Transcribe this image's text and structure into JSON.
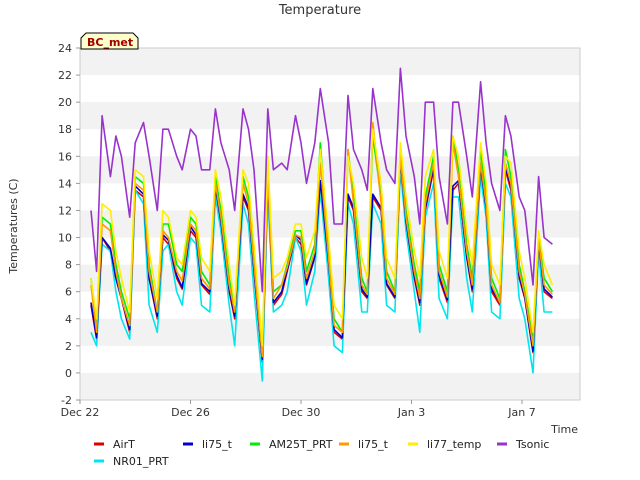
{
  "chart_data": {
    "type": "line",
    "title": "Temperature",
    "xlabel": "Time",
    "ylabel": "Temperatures (C)",
    "badge": "BC_met",
    "x_ticks": [
      "Dec 22",
      "Dec 26",
      "Dec 30",
      "Jan 3",
      "Jan 7"
    ],
    "x_tick_days": [
      0,
      4,
      8,
      12,
      16
    ],
    "xlim": [
      0,
      18.1
    ],
    "ylim": [
      -2,
      24
    ],
    "y_ticks": [
      -2,
      0,
      2,
      4,
      6,
      8,
      10,
      12,
      14,
      16,
      18,
      20,
      22,
      24
    ],
    "grid": "horizontal-bands",
    "legend_position": "bottom",
    "x": [
      0.4,
      0.6,
      0.8,
      1.1,
      1.3,
      1.5,
      1.8,
      2.0,
      2.3,
      2.5,
      2.8,
      3.0,
      3.2,
      3.5,
      3.7,
      4.0,
      4.2,
      4.4,
      4.7,
      4.9,
      5.1,
      5.4,
      5.6,
      5.9,
      6.1,
      6.3,
      6.6,
      6.8,
      7.0,
      7.3,
      7.5,
      7.8,
      8.0,
      8.2,
      8.5,
      8.7,
      9.0,
      9.2,
      9.5,
      9.7,
      9.9,
      10.2,
      10.4,
      10.6,
      10.9,
      11.1,
      11.4,
      11.6,
      11.8,
      12.1,
      12.3,
      12.5,
      12.8,
      13.0,
      13.3,
      13.5,
      13.7,
      14.0,
      14.2,
      14.5,
      14.7,
      14.9,
      15.2,
      15.4,
      15.6,
      15.9,
      16.1,
      16.4,
      16.6,
      16.8,
      17.1
    ],
    "series": [
      {
        "name": "AirT",
        "color": "#dd0000",
        "values": [
          5.0,
          2.5,
          10.0,
          9.0,
          7.0,
          5.5,
          3.0,
          13.5,
          13.0,
          7.0,
          4.0,
          10.0,
          9.5,
          7.0,
          6.2,
          10.5,
          10.0,
          6.5,
          5.8,
          13.5,
          11.0,
          6.0,
          4.0,
          13.0,
          12.0,
          7.5,
          0.8,
          14.0,
          5.0,
          5.8,
          7.5,
          10.0,
          9.5,
          6.5,
          8.5,
          14.0,
          8.0,
          3.0,
          2.5,
          13.0,
          12.0,
          6.0,
          5.5,
          13.0,
          12.0,
          6.5,
          5.5,
          15.5,
          11.0,
          7.0,
          5.0,
          12.0,
          15.0,
          7.0,
          5.2,
          13.5,
          14.0,
          8.5,
          6.0,
          15.0,
          12.0,
          6.0,
          5.0,
          15.0,
          13.5,
          7.0,
          5.5,
          1.5,
          9.5,
          6.0,
          5.5
        ]
      },
      {
        "name": "NR01_PRT",
        "color": "#00e5ee",
        "values": [
          3.0,
          2.0,
          9.5,
          9.0,
          6.0,
          4.0,
          2.5,
          13.5,
          12.5,
          5.0,
          3.0,
          9.0,
          9.5,
          6.0,
          5.0,
          10.0,
          9.5,
          5.0,
          4.5,
          13.0,
          10.5,
          5.0,
          2.0,
          12.5,
          11.0,
          6.0,
          -0.6,
          13.5,
          4.5,
          5.0,
          6.0,
          10.0,
          9.0,
          5.0,
          7.5,
          13.5,
          7.0,
          2.0,
          1.5,
          12.5,
          11.0,
          4.5,
          4.5,
          12.5,
          11.0,
          5.0,
          4.5,
          15.0,
          10.5,
          6.0,
          3.0,
          11.5,
          14.0,
          5.5,
          4.0,
          13.0,
          13.0,
          7.0,
          4.5,
          14.5,
          11.5,
          4.5,
          4.0,
          14.0,
          13.0,
          5.5,
          4.0,
          0.0,
          9.0,
          4.5,
          4.5
        ]
      },
      {
        "name": "li75_t",
        "color": "#0000cc",
        "values": [
          5.2,
          2.6,
          10.0,
          9.2,
          7.0,
          5.5,
          3.2,
          13.8,
          13.2,
          7.0,
          4.2,
          10.2,
          9.8,
          7.2,
          6.3,
          10.8,
          10.2,
          6.6,
          6.0,
          13.8,
          11.2,
          6.2,
          4.2,
          13.2,
          12.2,
          7.6,
          1.0,
          14.2,
          5.2,
          6.0,
          7.6,
          10.2,
          9.8,
          6.6,
          8.6,
          14.2,
          8.2,
          3.2,
          2.6,
          13.2,
          12.2,
          6.2,
          5.6,
          13.2,
          12.2,
          6.6,
          5.6,
          15.8,
          11.2,
          7.2,
          5.2,
          12.2,
          15.2,
          7.2,
          5.4,
          13.8,
          14.2,
          8.6,
          6.2,
          15.2,
          12.2,
          6.2,
          5.2,
          15.2,
          13.8,
          7.2,
          5.6,
          1.6,
          9.6,
          6.2,
          5.6
        ]
      },
      {
        "name": "AM25T_PRT",
        "color": "#00ee00",
        "values": [
          7.0,
          3.5,
          11.5,
          11.0,
          8.0,
          6.0,
          4.0,
          14.5,
          14.0,
          8.0,
          4.5,
          11.0,
          11.0,
          8.0,
          7.5,
          11.5,
          11.0,
          7.5,
          6.5,
          14.5,
          12.0,
          7.0,
          4.5,
          14.5,
          13.0,
          8.5,
          1.5,
          15.5,
          6.0,
          6.5,
          8.0,
          10.5,
          10.5,
          7.5,
          9.5,
          17.0,
          9.0,
          4.0,
          3.0,
          16.5,
          13.0,
          7.0,
          6.0,
          17.5,
          13.0,
          7.5,
          6.0,
          16.5,
          12.0,
          8.0,
          6.0,
          13.0,
          16.0,
          8.0,
          6.0,
          17.5,
          15.0,
          9.5,
          7.0,
          16.5,
          13.0,
          7.0,
          5.5,
          16.5,
          14.5,
          8.0,
          6.0,
          2.5,
          10.0,
          7.0,
          6.0
        ]
      },
      {
        "name": "li75_t",
        "color": "#ff9900",
        "values": [
          6.5,
          3.0,
          11.0,
          10.5,
          7.5,
          5.5,
          3.5,
          14.0,
          13.5,
          7.5,
          4.5,
          10.5,
          10.0,
          7.5,
          6.8,
          11.0,
          10.5,
          7.0,
          6.2,
          14.0,
          11.5,
          6.5,
          4.5,
          14.0,
          12.5,
          8.0,
          1.2,
          14.5,
          5.5,
          6.5,
          7.8,
          10.2,
          10.0,
          7.0,
          9.0,
          15.5,
          8.5,
          3.5,
          3.0,
          16.5,
          12.5,
          6.5,
          5.8,
          18.5,
          12.5,
          7.0,
          5.8,
          16.0,
          11.5,
          7.5,
          5.5,
          12.5,
          15.5,
          7.5,
          5.6,
          17.0,
          14.5,
          9.0,
          6.5,
          15.5,
          12.5,
          6.5,
          5.2,
          15.5,
          14.0,
          7.5,
          5.8,
          2.0,
          9.8,
          6.5,
          5.8
        ]
      },
      {
        "name": "li77_temp",
        "color": "#ffee00",
        "values": [
          7.0,
          4.0,
          12.5,
          12.0,
          9.0,
          7.0,
          4.5,
          15.0,
          14.5,
          9.0,
          5.5,
          12.0,
          11.5,
          8.5,
          8.0,
          12.0,
          11.5,
          8.5,
          7.5,
          15.0,
          13.0,
          8.0,
          5.0,
          15.0,
          14.0,
          9.5,
          2.0,
          16.0,
          7.0,
          7.5,
          8.5,
          11.0,
          11.0,
          8.5,
          10.5,
          16.5,
          10.0,
          5.0,
          4.0,
          16.0,
          14.0,
          8.5,
          7.0,
          18.0,
          14.0,
          8.5,
          7.0,
          17.0,
          13.0,
          9.0,
          7.0,
          14.5,
          16.5,
          9.0,
          7.0,
          17.5,
          16.0,
          10.5,
          8.0,
          17.0,
          14.0,
          8.0,
          6.5,
          16.0,
          15.5,
          9.0,
          7.0,
          3.0,
          10.5,
          8.0,
          6.5
        ]
      },
      {
        "name": "Tsonic",
        "color": "#9933cc",
        "values": [
          12.0,
          7.5,
          19.0,
          14.5,
          17.5,
          16.0,
          11.5,
          17.0,
          18.5,
          16.0,
          12.0,
          18.0,
          18.0,
          16.0,
          15.0,
          18.0,
          17.5,
          15.0,
          15.0,
          19.5,
          17.0,
          15.0,
          12.0,
          19.5,
          18.0,
          15.0,
          6.0,
          19.5,
          15.0,
          15.5,
          15.0,
          19.0,
          17.0,
          14.0,
          17.0,
          21.0,
          17.0,
          11.0,
          11.0,
          20.5,
          16.5,
          15.0,
          13.5,
          21.0,
          17.0,
          15.0,
          14.0,
          22.5,
          17.5,
          14.5,
          11.0,
          20.0,
          20.0,
          14.5,
          11.0,
          20.0,
          20.0,
          16.0,
          13.0,
          21.5,
          17.0,
          14.0,
          12.0,
          19.0,
          17.5,
          13.0,
          12.0,
          6.5,
          14.5,
          10.0,
          9.5
        ]
      }
    ]
  }
}
